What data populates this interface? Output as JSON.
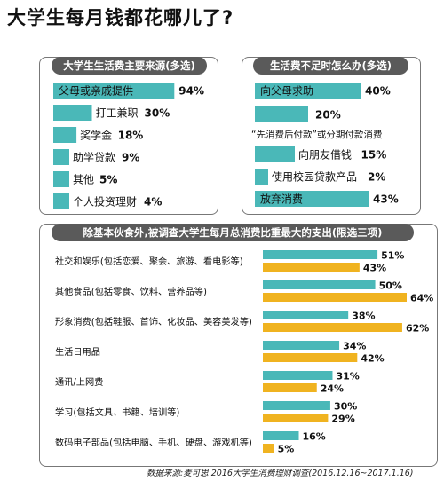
{
  "title": "大学生每月钱都花哪儿了?",
  "panels": {
    "sources_title": "大学生生活费主要来源(多选)",
    "shortfall_title": "生活费不足时怎么办(多选)",
    "spending_title": "除基本伙食外,被调查大学生每月总消费比重最大的支出(限选三项)"
  },
  "source_note": "数据来源:麦可思 2016大学生消费理财调查(2016.12.16~2017.1.16)",
  "colors": {
    "teal": "#4ab8b8",
    "gold": "#f0b320",
    "panel_header": "#5a5a5a",
    "border": "#777777"
  },
  "chart_data": [
    {
      "type": "bar",
      "title": "大学生生活费主要来源(多选)",
      "categories": [
        "父母或亲戚提供",
        "打工兼职",
        "奖学金",
        "助学贷款",
        "其他",
        "个人投资理财"
      ],
      "values": [
        94,
        30,
        18,
        9,
        5,
        4
      ],
      "value_labels": [
        "94%",
        "30%",
        "18%",
        "9%",
        "5%",
        "4%"
      ],
      "ylim": [
        0,
        100
      ]
    },
    {
      "type": "bar",
      "title": "生活费不足时怎么办(多选)",
      "categories": [
        "向父母求助",
        "“先消费后付款”或分期付款消费",
        "向朋友借钱",
        "使用校园贷款产品",
        "放弃消费"
      ],
      "values": [
        40,
        20,
        15,
        2,
        43
      ],
      "value_labels": [
        "40%",
        "20%",
        "15%",
        "2%",
        "43%"
      ],
      "ylim": [
        0,
        45
      ]
    },
    {
      "type": "bar",
      "title": "除基本伙食外,被调查大学生每月总消费比重最大的支出(限选三项)",
      "categories": [
        "社交和娱乐(包括恋爱、聚会、旅游、看电影等)",
        "其他食品(包括零食、饮料、营养品等)",
        "形象消费(包括鞋服、首饰、化妆品、美容美发等)",
        "生活日用品",
        "通讯/上网费",
        "学习(包括文具、书籍、培训等)",
        "数码电子部品(包括电脑、手机、硬盘、游戏机等)"
      ],
      "series": [
        {
          "values": [
            51,
            50,
            38,
            34,
            31,
            30,
            16
          ],
          "value_labels": [
            "51%",
            "50%",
            "38%",
            "34%",
            "31%",
            "30%",
            "16%"
          ]
        },
        {
          "values": [
            43,
            64,
            62,
            42,
            24,
            29,
            5
          ],
          "value_labels": [
            "43%",
            "64%",
            "62%",
            "42%",
            "24%",
            "29%",
            "5%"
          ]
        }
      ],
      "ylim": [
        0,
        64
      ]
    }
  ]
}
